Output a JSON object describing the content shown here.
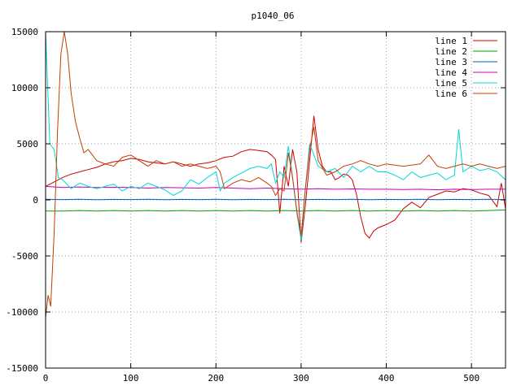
{
  "chart_data": {
    "type": "line",
    "title": "p1040_06",
    "xlabel": "",
    "ylabel": "",
    "xlim": [
      0,
      540
    ],
    "ylim": [
      -15000,
      15000
    ],
    "x_ticks": [
      0,
      100,
      200,
      300,
      400,
      500
    ],
    "y_ticks": [
      -15000,
      -10000,
      -5000,
      0,
      5000,
      10000,
      15000
    ],
    "grid": true,
    "legend_position": "top-right",
    "series": [
      {
        "name": "line 1",
        "color": "#cc0000",
        "x": [
          0,
          10,
          20,
          30,
          40,
          50,
          60,
          70,
          80,
          90,
          100,
          110,
          120,
          130,
          140,
          150,
          160,
          170,
          180,
          190,
          200,
          210,
          220,
          230,
          240,
          250,
          260,
          265,
          270,
          275,
          280,
          285,
          290,
          295,
          300,
          305,
          310,
          315,
          320,
          325,
          330,
          335,
          340,
          345,
          350,
          355,
          360,
          365,
          370,
          375,
          380,
          385,
          390,
          400,
          410,
          420,
          430,
          440,
          450,
          460,
          470,
          480,
          490,
          500,
          510,
          520,
          530,
          535,
          540
        ],
        "values": [
          1200,
          1600,
          2000,
          2300,
          2500,
          2700,
          2900,
          3200,
          3400,
          3500,
          3700,
          3600,
          3400,
          3300,
          3200,
          3400,
          3200,
          3000,
          3200,
          3300,
          3500,
          3800,
          3900,
          4300,
          4500,
          4400,
          4300,
          4000,
          3600,
          -1200,
          3000,
          1200,
          4500,
          2500,
          -3800,
          -500,
          3500,
          7500,
          4500,
          3000,
          2500,
          2500,
          1800,
          2000,
          2300,
          2200,
          1800,
          500,
          -1500,
          -3000,
          -3400,
          -2800,
          -2500,
          -2200,
          -1800,
          -800,
          -200,
          -700,
          200,
          500,
          800,
          700,
          1000,
          900,
          600,
          400,
          -600,
          1500,
          -800
        ]
      },
      {
        "name": "line 2",
        "color": "#00a000",
        "x": [
          0,
          20,
          40,
          60,
          80,
          100,
          120,
          140,
          160,
          180,
          200,
          220,
          240,
          260,
          280,
          300,
          320,
          340,
          360,
          380,
          400,
          420,
          440,
          460,
          480,
          500,
          520,
          540
        ],
        "values": [
          -1000,
          -1000,
          -950,
          -1000,
          -950,
          -1000,
          -950,
          -1000,
          -950,
          -1000,
          -950,
          -1000,
          -950,
          -1000,
          -950,
          -1000,
          -950,
          -1000,
          -950,
          -1000,
          -950,
          -1000,
          -950,
          -1000,
          -950,
          -1000,
          -950,
          -900
        ]
      },
      {
        "name": "line 3",
        "color": "#0060c0",
        "x": [
          0,
          20,
          40,
          60,
          80,
          100,
          120,
          140,
          160,
          180,
          200,
          220,
          240,
          260,
          280,
          300,
          320,
          340,
          360,
          380,
          400,
          420,
          440,
          460,
          480,
          500,
          520,
          540
        ],
        "values": [
          50,
          30,
          50,
          20,
          40,
          30,
          50,
          20,
          40,
          30,
          50,
          20,
          40,
          30,
          50,
          20,
          40,
          30,
          50,
          20,
          40,
          30,
          50,
          20,
          40,
          30,
          50,
          20
        ]
      },
      {
        "name": "line 4",
        "color": "#c000c0",
        "x": [
          0,
          20,
          40,
          60,
          80,
          100,
          120,
          140,
          160,
          180,
          200,
          220,
          240,
          260,
          280,
          300,
          320,
          340,
          360,
          380,
          400,
          420,
          440,
          460,
          480,
          500,
          520,
          540
        ],
        "values": [
          1200,
          1100,
          1150,
          1100,
          1120,
          1100,
          1050,
          1100,
          1080,
          1050,
          1100,
          1050,
          1000,
          1050,
          1000,
          950,
          1000,
          950,
          980,
          950,
          950,
          920,
          950,
          900,
          950,
          920,
          950,
          950
        ]
      },
      {
        "name": "line 5",
        "color": "#00d8d8",
        "x": [
          0,
          5,
          10,
          15,
          20,
          30,
          40,
          50,
          60,
          70,
          80,
          90,
          100,
          110,
          120,
          130,
          140,
          150,
          160,
          170,
          180,
          190,
          200,
          205,
          210,
          220,
          230,
          240,
          250,
          260,
          265,
          270,
          275,
          280,
          285,
          290,
          295,
          300,
          305,
          310,
          315,
          320,
          330,
          340,
          350,
          360,
          370,
          380,
          390,
          400,
          410,
          420,
          430,
          440,
          450,
          460,
          470,
          480,
          485,
          490,
          500,
          510,
          520,
          530,
          540
        ],
        "values": [
          15000,
          5000,
          4500,
          2000,
          1800,
          1000,
          1500,
          1200,
          1000,
          1200,
          1400,
          800,
          1200,
          1000,
          1500,
          1200,
          900,
          400,
          800,
          1800,
          1400,
          2000,
          2500,
          800,
          1500,
          2000,
          2400,
          2800,
          3000,
          2800,
          3200,
          1500,
          2500,
          2000,
          4800,
          2000,
          -1200,
          -3600,
          1000,
          5000,
          4000,
          3000,
          2500,
          2800,
          2000,
          3000,
          2500,
          3000,
          2500,
          2500,
          2200,
          1800,
          2500,
          2000,
          2200,
          2400,
          1800,
          2200,
          6300,
          2500,
          3000,
          2600,
          2800,
          2500,
          1800
        ]
      },
      {
        "name": "line 6",
        "color": "#c04000",
        "x": [
          0,
          3,
          6,
          10,
          14,
          18,
          22,
          26,
          30,
          35,
          40,
          45,
          50,
          60,
          70,
          80,
          90,
          100,
          110,
          120,
          130,
          140,
          150,
          160,
          170,
          180,
          190,
          200,
          205,
          210,
          220,
          230,
          240,
          250,
          260,
          265,
          270,
          275,
          280,
          285,
          290,
          295,
          300,
          305,
          310,
          315,
          320,
          330,
          340,
          350,
          360,
          370,
          380,
          390,
          400,
          420,
          440,
          450,
          460,
          470,
          480,
          490,
          500,
          510,
          520,
          530,
          540
        ],
        "values": [
          -10500,
          -8500,
          -9500,
          -3000,
          6000,
          13000,
          15000,
          13000,
          9500,
          7000,
          5500,
          4200,
          4500,
          3500,
          3200,
          3000,
          3800,
          4000,
          3500,
          3000,
          3500,
          3200,
          3400,
          3000,
          3200,
          3000,
          2800,
          3000,
          2500,
          1000,
          1500,
          1800,
          1600,
          2000,
          1500,
          1200,
          400,
          1000,
          800,
          4200,
          2000,
          -1000,
          -3200,
          1000,
          4500,
          6500,
          3500,
          2200,
          2500,
          3000,
          3200,
          3500,
          3200,
          3000,
          3200,
          3000,
          3200,
          4000,
          3000,
          2800,
          3000,
          3200,
          3000,
          3200,
          3000,
          2800,
          3000
        ]
      }
    ]
  }
}
